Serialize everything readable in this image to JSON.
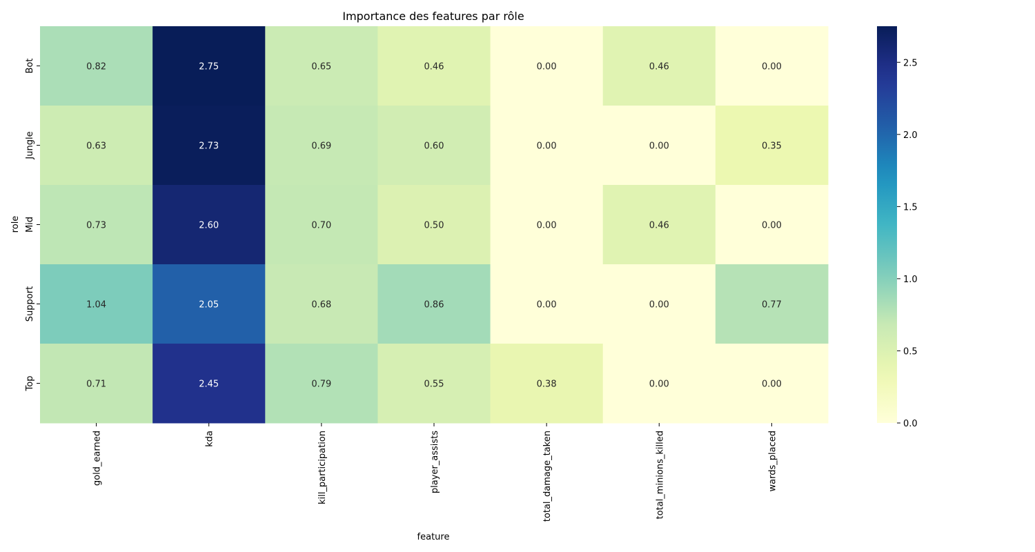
{
  "chart_data": {
    "type": "heatmap",
    "title": "Importance des features par rôle",
    "xlabel": "feature",
    "ylabel": "role",
    "x_categories": [
      "gold_earned",
      "kda",
      "kill_participation",
      "player_assists",
      "total_damage_taken",
      "total_minions_killed",
      "wards_placed"
    ],
    "y_categories": [
      "Bot",
      "Jungle",
      "Mid",
      "Support",
      "Top"
    ],
    "values": [
      [
        0.82,
        2.75,
        0.65,
        0.46,
        0.0,
        0.46,
        0.0
      ],
      [
        0.63,
        2.73,
        0.69,
        0.6,
        0.0,
        0.0,
        0.35
      ],
      [
        0.73,
        2.6,
        0.7,
        0.5,
        0.0,
        0.46,
        0.0
      ],
      [
        1.04,
        2.05,
        0.68,
        0.86,
        0.0,
        0.0,
        0.77
      ],
      [
        0.71,
        2.45,
        0.79,
        0.55,
        0.38,
        0.0,
        0.0
      ]
    ],
    "value_format": "0.00",
    "colormap": "YlGnBu",
    "colorbar": {
      "min": 0.0,
      "max": 2.75,
      "ticks": [
        0.0,
        0.5,
        1.0,
        1.5,
        2.0,
        2.5
      ],
      "tick_labels": [
        "0.0",
        "0.5",
        "1.0",
        "1.5",
        "2.0",
        "2.5"
      ]
    },
    "grid": false,
    "legend": "colorbar-right"
  }
}
